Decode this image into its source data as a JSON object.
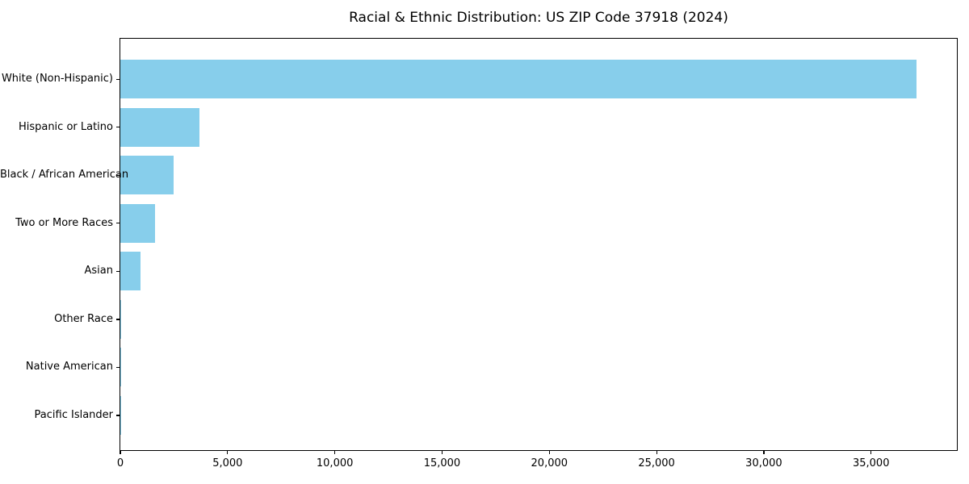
{
  "chart_data": {
    "type": "bar",
    "orientation": "horizontal",
    "title": "Racial & Ethnic Distribution: US ZIP Code 37918 (2024)",
    "categories": [
      "White (Non-Hispanic)",
      "Hispanic or Latino",
      "Black / African American",
      "Two or More Races",
      "Asian",
      "Other Race",
      "Native American",
      "Pacific Islander"
    ],
    "values": [
      37100,
      3700,
      2500,
      1600,
      930,
      50,
      30,
      10
    ],
    "xlabel": "",
    "ylabel": "",
    "xlim": [
      0,
      39000
    ],
    "x_tick_values": [
      0,
      5000,
      10000,
      15000,
      20000,
      25000,
      30000,
      35000
    ],
    "x_tick_labels": [
      "0",
      "5,000",
      "10,000",
      "15,000",
      "20,000",
      "25,000",
      "30,000",
      "35,000"
    ],
    "bar_color": "#87CEEB",
    "background_color": "#ffffff",
    "spine_color": "#000000",
    "grid": false,
    "legend": false
  }
}
